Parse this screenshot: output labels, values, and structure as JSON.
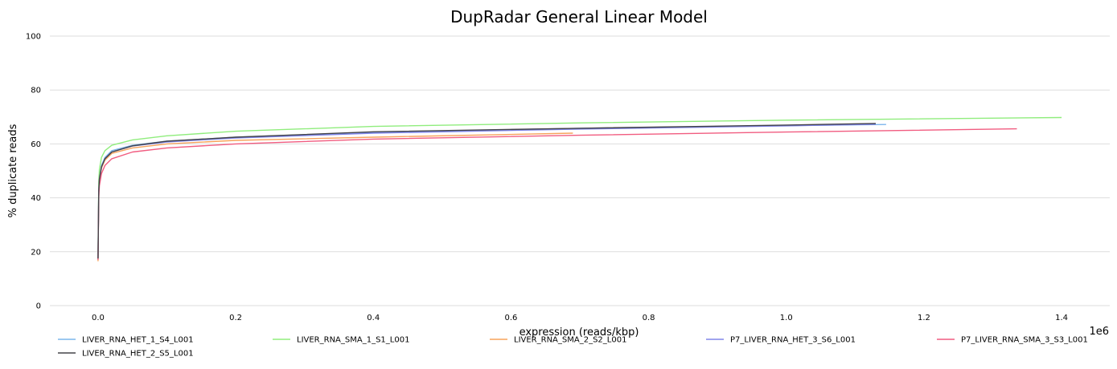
{
  "chart_data": {
    "type": "line",
    "title": "DupRadar General Linear Model",
    "xlabel": "expression (reads/kbp)",
    "ylabel": "% duplicate reads",
    "x_scale_label": "1e6",
    "xlim": [
      -70000,
      1470000
    ],
    "ylim": [
      0,
      100
    ],
    "x_ticks": [
      0,
      200000,
      400000,
      600000,
      800000,
      1000000,
      1200000,
      1400000
    ],
    "x_tick_labels": [
      "0.0",
      "0.2",
      "0.4",
      "0.6",
      "0.8",
      "1.0",
      "1.2",
      "1.4"
    ],
    "y_ticks": [
      0,
      20,
      40,
      60,
      80,
      100
    ],
    "y_tick_labels": [
      "0",
      "20",
      "40",
      "60",
      "80",
      "100"
    ],
    "grid": "horizontal",
    "legend_position": "bottom",
    "series": [
      {
        "name": "LIVER_RNA_HET_1_S4_L001",
        "color": "#7cb5ec",
        "x": [
          0,
          1000,
          2000,
          5000,
          10000,
          20000,
          50000,
          100000,
          200000,
          400000,
          700000,
          1000000,
          1145000
        ],
        "y": [
          17.5,
          43,
          47.5,
          52,
          55,
          57.5,
          59.5,
          61,
          62.5,
          64.3,
          65.8,
          66.8,
          67.2
        ]
      },
      {
        "name": "LIVER_RNA_SMA_1_S1_L001",
        "color": "#90ed7d",
        "x": [
          0,
          1000,
          2000,
          5000,
          10000,
          20000,
          50000,
          100000,
          200000,
          400000,
          700000,
          1000000,
          1400000
        ],
        "y": [
          18,
          46,
          50.5,
          55,
          57.5,
          59.5,
          61.5,
          63,
          64.7,
          66.5,
          67.8,
          68.8,
          69.8
        ]
      },
      {
        "name": "LIVER_RNA_SMA_2_S2_L001",
        "color": "#f7a35c",
        "x": [
          0,
          1000,
          2000,
          5000,
          10000,
          20000,
          50000,
          100000,
          200000,
          400000,
          600000,
          690000
        ],
        "y": [
          16.5,
          42,
          46.5,
          51,
          54,
          56.5,
          58.5,
          60,
          61.3,
          62.5,
          63.5,
          64
        ]
      },
      {
        "name": "P7_LIVER_RNA_HET_3_S6_L001",
        "color": "#8085e9",
        "x": [
          0,
          1000,
          2000,
          5000,
          10000,
          20000,
          50000,
          100000,
          200000,
          400000,
          700000,
          1000000,
          1130000
        ],
        "y": [
          17.5,
          42.5,
          47,
          51.5,
          54.5,
          57,
          59.2,
          60.7,
          62.2,
          64,
          65.5,
          66.7,
          67.3
        ]
      },
      {
        "name": "P7_LIVER_RNA_SMA_3_S3_L001",
        "color": "#f15c80",
        "x": [
          0,
          1000,
          2000,
          5000,
          10000,
          20000,
          50000,
          100000,
          200000,
          400000,
          700000,
          1000000,
          1335000
        ],
        "y": [
          17,
          40,
          44.5,
          49,
          52,
          54.5,
          57,
          58.5,
          60,
          61.8,
          63.2,
          64.4,
          65.6
        ]
      },
      {
        "name": "LIVER_RNA_HET_2_S5_L001",
        "color": "#434348",
        "x": [
          0,
          1000,
          2000,
          5000,
          10000,
          20000,
          50000,
          100000,
          200000,
          400000,
          700000,
          1000000,
          1130000
        ],
        "y": [
          17.5,
          42.5,
          47,
          51.5,
          54.5,
          57,
          59.3,
          61,
          62.5,
          64.5,
          65.8,
          67,
          67.6
        ]
      }
    ]
  }
}
